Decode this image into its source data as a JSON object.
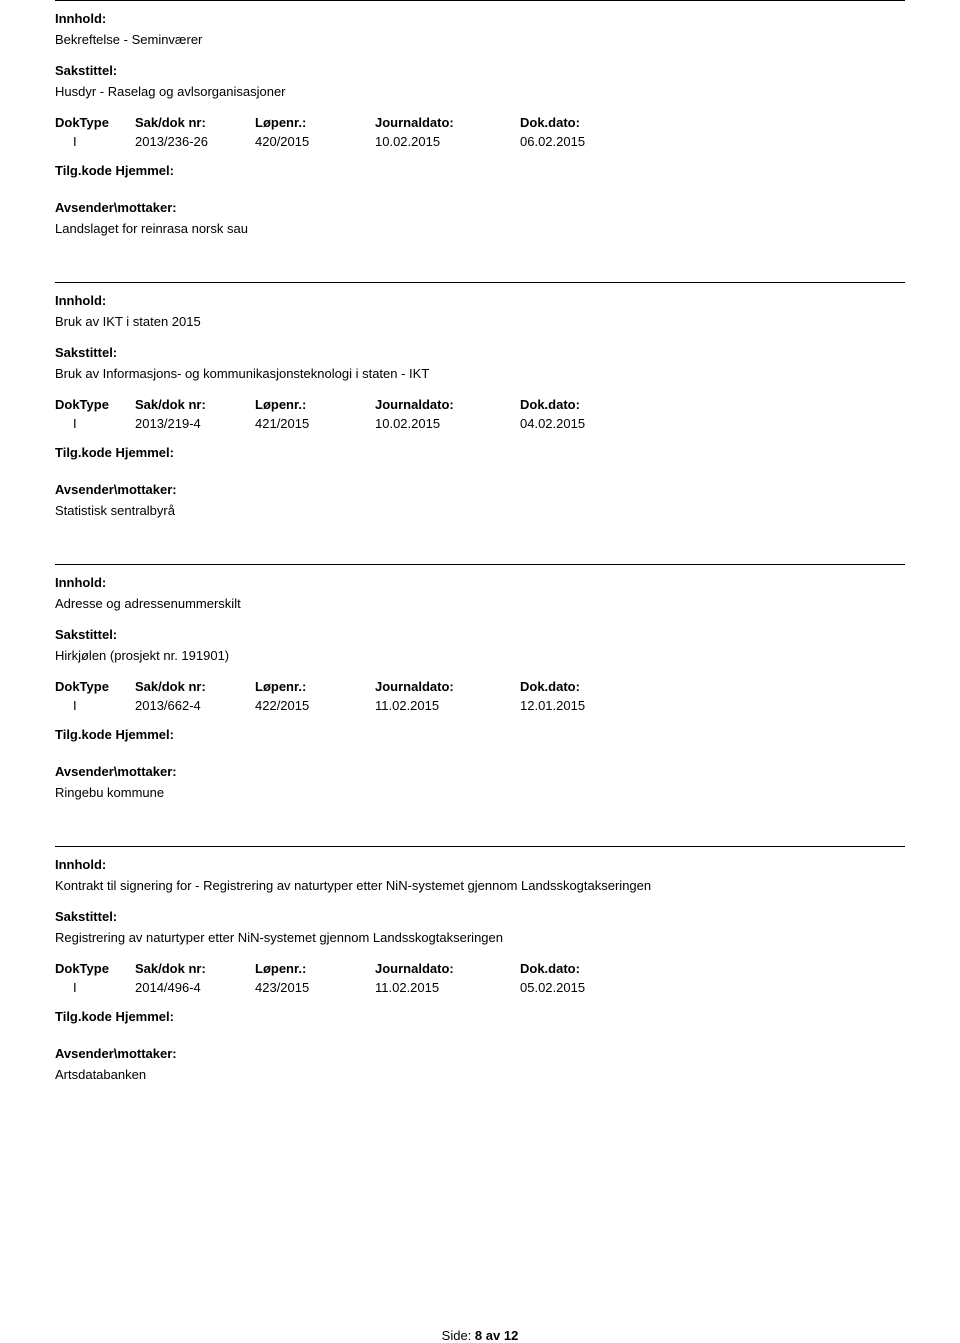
{
  "labels": {
    "innhold": "Innhold:",
    "sakstittel": "Sakstittel:",
    "doktype": "DokType",
    "saknr": "Sak/dok nr:",
    "lopenr": "Løpenr.:",
    "journaldato": "Journaldato:",
    "dokdato": "Dok.dato:",
    "tilgkode": "Tilg.kode",
    "hjemmel": "Hjemmel:",
    "avsender": "Avsender\\mottaker:"
  },
  "records": [
    {
      "innhold": "Bekreftelse - Seminværer",
      "sakstittel": "Husdyr - Raselag og avlsorganisasjoner",
      "doktype": "I",
      "saknr": "2013/236-26",
      "lopenr": "420/2015",
      "journaldato": "10.02.2015",
      "dokdato": "06.02.2015",
      "avsender": "Landslaget for reinrasa norsk sau"
    },
    {
      "innhold": "Bruk av IKT i staten 2015",
      "sakstittel": "Bruk av Informasjons- og kommunikasjonsteknologi i staten - IKT",
      "doktype": "I",
      "saknr": "2013/219-4",
      "lopenr": "421/2015",
      "journaldato": "10.02.2015",
      "dokdato": "04.02.2015",
      "avsender": "Statistisk sentralbyrå"
    },
    {
      "innhold": "Adresse og adressenummerskilt",
      "sakstittel": "Hirkjølen (prosjekt nr. 191901)",
      "doktype": "I",
      "saknr": "2013/662-4",
      "lopenr": "422/2015",
      "journaldato": "11.02.2015",
      "dokdato": "12.01.2015",
      "avsender": "Ringebu kommune"
    },
    {
      "innhold": "Kontrakt til signering for - Registrering av naturtyper etter NiN-systemet gjennom Landsskogtakseringen",
      "sakstittel": "Registrering av naturtyper etter NiN-systemet gjennom Landsskogtakseringen",
      "doktype": "I",
      "saknr": "2014/496-4",
      "lopenr": "423/2015",
      "journaldato": "11.02.2015",
      "dokdato": "05.02.2015",
      "avsender": "Artsdatabanken"
    }
  ],
  "footer": {
    "side_label": "Side:",
    "page_current": "8",
    "av_label": "av",
    "page_total": "12"
  }
}
